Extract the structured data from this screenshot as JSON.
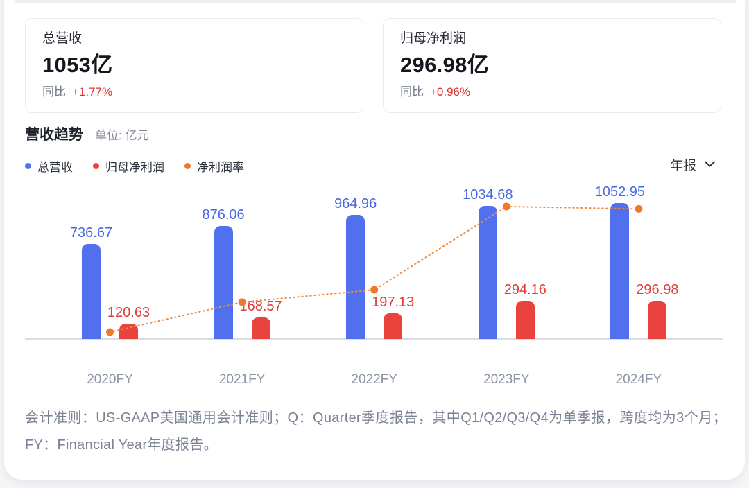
{
  "metric_cards": [
    {
      "label": "总营收",
      "value": "1053亿",
      "yoy_label": "同比",
      "yoy_value": "+1.77%"
    },
    {
      "label": "归母净利润",
      "value": "296.98亿",
      "yoy_label": "同比",
      "yoy_value": "+0.96%"
    }
  ],
  "section": {
    "title": "营收趋势",
    "unit_label": "单位: 亿元"
  },
  "legend": [
    {
      "label": "总营收",
      "color": "#5170ee"
    },
    {
      "label": "归母净利润",
      "color": "#e8413a"
    },
    {
      "label": "净利润率",
      "color": "#f0782a"
    }
  ],
  "period_selector": {
    "label": "年报"
  },
  "chart_data": {
    "type": "bar",
    "categories": [
      "2020FY",
      "2021FY",
      "2022FY",
      "2023FY",
      "2024FY"
    ],
    "series": [
      {
        "name": "总营收",
        "type": "bar",
        "color": "#5170ee",
        "label_color": "#4566e4",
        "values": [
          736.67,
          876.06,
          964.96,
          1034.68,
          1052.95
        ]
      },
      {
        "name": "归母净利润",
        "type": "bar",
        "color": "#ea423c",
        "label_color": "#e23c35",
        "values": [
          120.63,
          168.57,
          197.13,
          294.16,
          296.98
        ]
      },
      {
        "name": "净利润率",
        "type": "line",
        "style": "dotted",
        "color": "#f0782a",
        "line_color": "#f08c42",
        "values_percent": [
          16.37,
          19.24,
          20.43,
          28.43,
          28.2
        ]
      }
    ],
    "unit": "亿元",
    "value_labels_shown": true,
    "legend_position": "top-left",
    "grid": false,
    "ylim": [
      0,
      1100
    ]
  },
  "footnote": "会计准则：US-GAAP美国通用会计准则；Q：Quarter季度报告，其中Q1/Q2/Q3/Q4为单季报，跨度均为3个月；FY：Financial Year年度报告。",
  "colors": {
    "yoy_up": "#e02f2f",
    "axis": "#dadde2",
    "x_label": "#8d95a6",
    "footnote": "#7a8294"
  }
}
